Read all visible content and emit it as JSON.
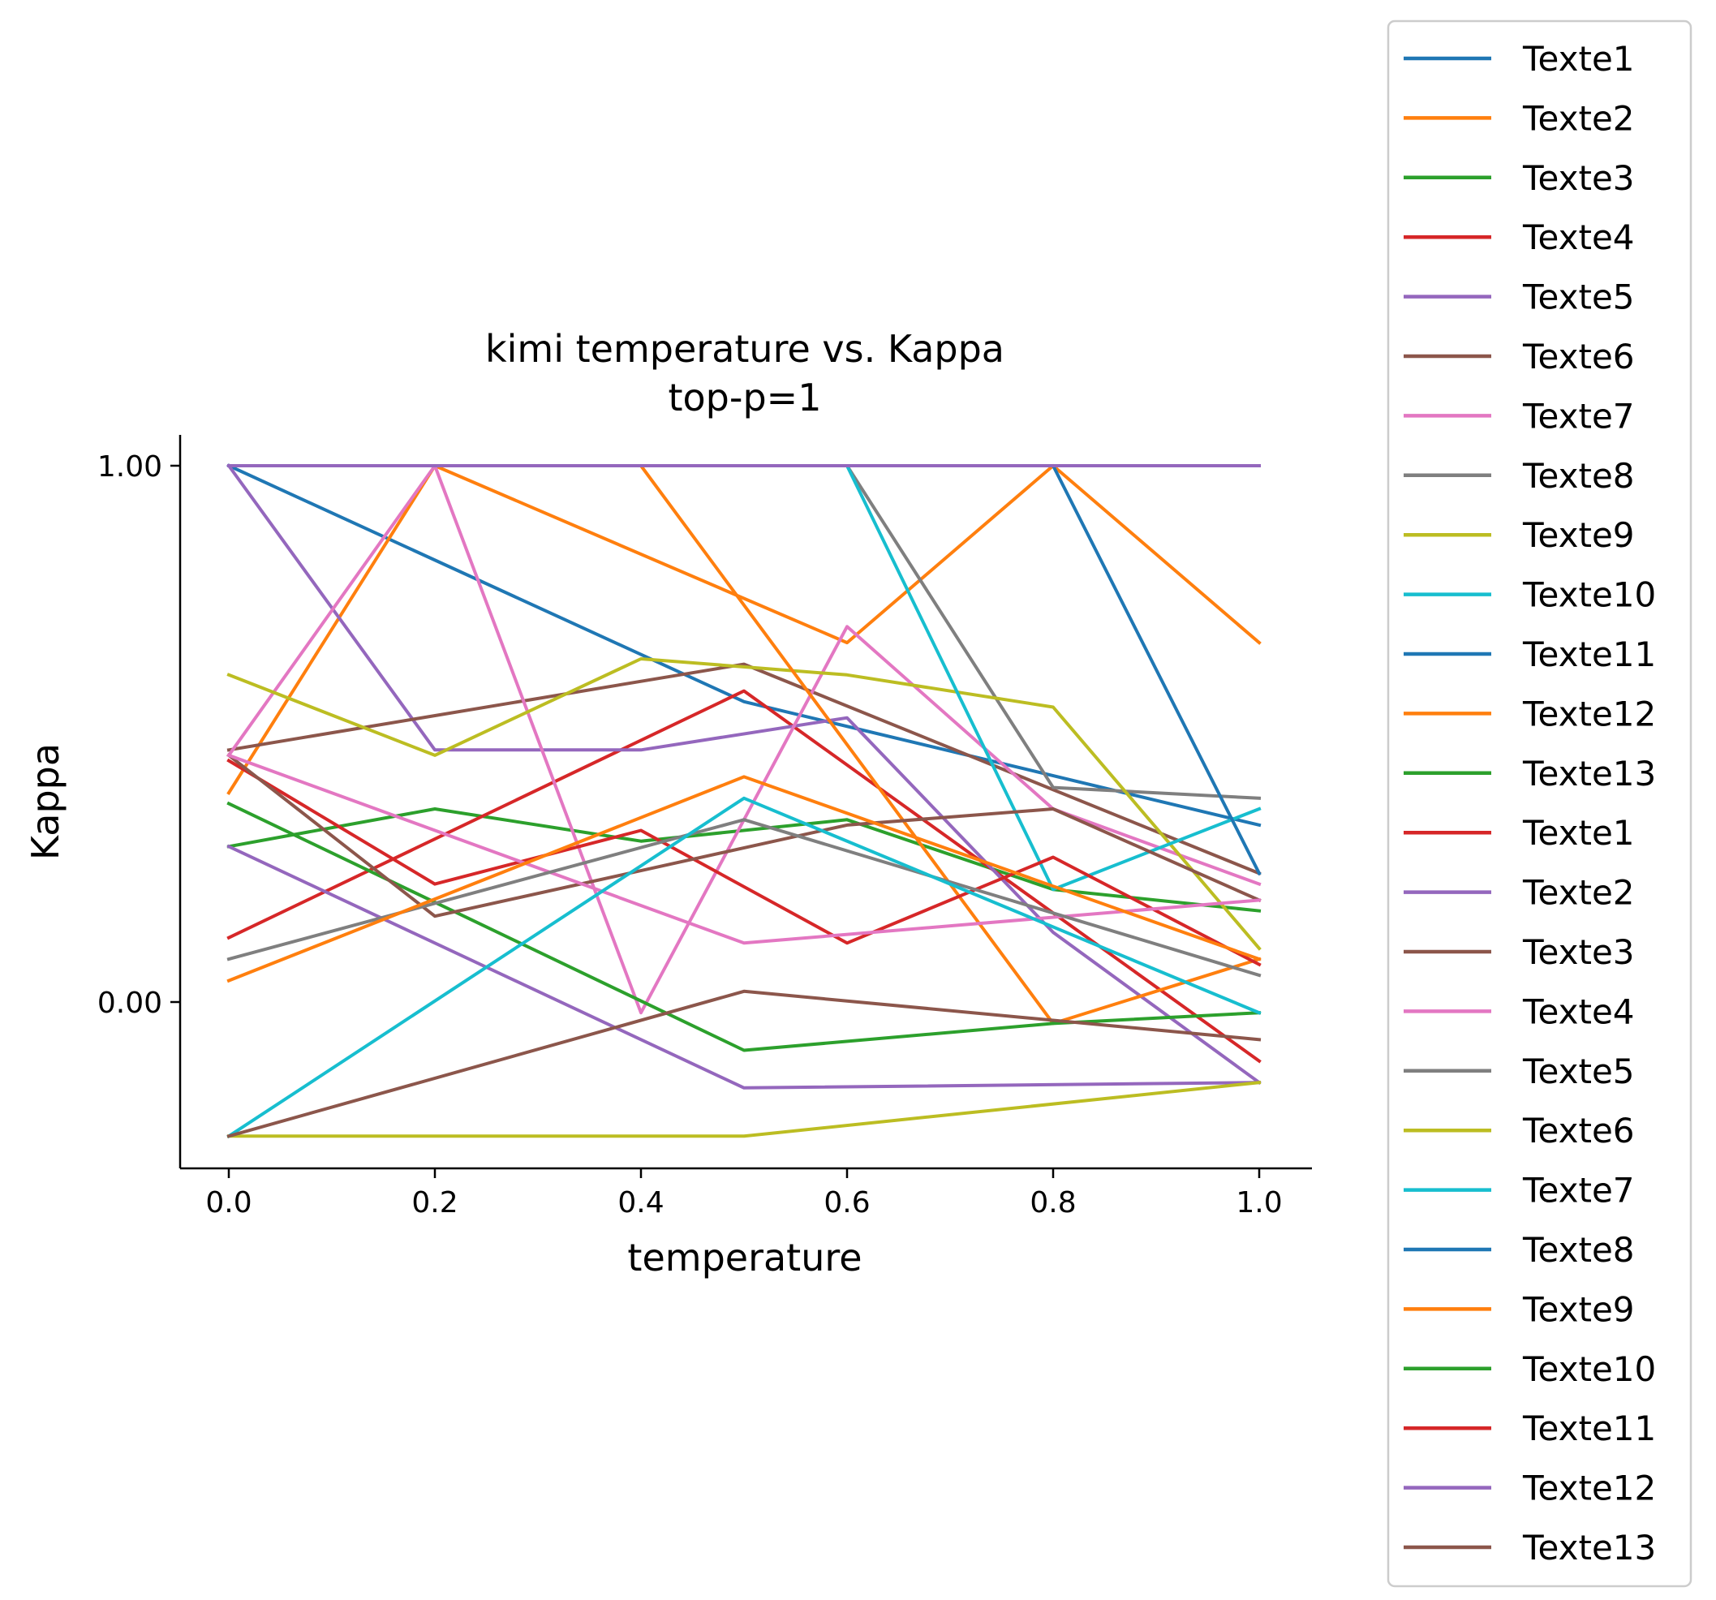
{
  "chart_data": {
    "type": "line",
    "title": "kimi temperature vs. Kappa",
    "subtitle": "top-p=1",
    "xlabel": "temperature",
    "ylabel": "Kappa",
    "xlim": [
      -0.05,
      1.05
    ],
    "ylim": [
      -0.31,
      1.06
    ],
    "x_ticks": [
      0.0,
      0.2,
      0.4,
      0.6,
      0.8,
      1.0
    ],
    "x_tick_labels": [
      "0.0",
      "0.2",
      "0.4",
      "0.6",
      "0.8",
      "1.0"
    ],
    "y_ticks": [
      0.0,
      1.0
    ],
    "y_tick_labels": [
      "0.00",
      "1.00"
    ],
    "grid": false,
    "legend_position": "outside-right",
    "series": [
      {
        "name": "Texte1",
        "color": "#1f77b4",
        "x": [
          0.0,
          0.5,
          1.0
        ],
        "y": [
          1.0,
          0.56,
          0.33
        ]
      },
      {
        "name": "Texte2",
        "color": "#ff7f0e",
        "x": [
          0.0,
          0.2,
          0.6,
          0.8,
          1.0
        ],
        "y": [
          0.39,
          1.0,
          0.67,
          1.0,
          0.67
        ]
      },
      {
        "name": "Texte3",
        "color": "#2ca02c",
        "x": [
          0.0,
          0.2,
          0.4,
          0.6,
          0.8,
          1.0
        ],
        "y": [
          0.29,
          0.36,
          0.3,
          0.34,
          0.21,
          0.17
        ]
      },
      {
        "name": "Texte4",
        "color": "#d62728",
        "x": [
          0.0,
          0.5,
          1.0
        ],
        "y": [
          0.12,
          0.58,
          -0.11
        ]
      },
      {
        "name": "Texte5",
        "color": "#9467bd",
        "x": [
          0.0,
          0.2,
          0.4,
          0.6,
          0.8,
          1.0
        ],
        "y": [
          1.0,
          0.47,
          0.47,
          0.53,
          0.13,
          -0.15
        ]
      },
      {
        "name": "Texte6",
        "color": "#8c564b",
        "x": [
          0.0,
          0.5,
          1.0
        ],
        "y": [
          0.47,
          0.63,
          0.24
        ]
      },
      {
        "name": "Texte7",
        "color": "#e377c2",
        "x": [
          0.0,
          0.2,
          0.4,
          0.6,
          0.8,
          1.0
        ],
        "y": [
          0.46,
          1.0,
          -0.02,
          0.7,
          0.36,
          0.22
        ]
      },
      {
        "name": "Texte8",
        "color": "#7f7f7f",
        "x": [
          0.0,
          0.6,
          0.8,
          1.0
        ],
        "y": [
          1.0,
          1.0,
          0.4,
          0.38
        ]
      },
      {
        "name": "Texte9",
        "color": "#bcbd22",
        "x": [
          0.0,
          0.2,
          0.4,
          0.6,
          0.8,
          1.0
        ],
        "y": [
          0.61,
          0.46,
          0.64,
          0.61,
          0.55,
          0.1
        ]
      },
      {
        "name": "Texte10",
        "color": "#17becf",
        "x": [
          0.0,
          0.6,
          0.8,
          1.0
        ],
        "y": [
          1.0,
          1.0,
          0.21,
          0.36
        ]
      },
      {
        "name": "Texte11",
        "color": "#1f77b4",
        "x": [
          0.0,
          0.8,
          1.0
        ],
        "y": [
          1.0,
          1.0,
          0.24
        ]
      },
      {
        "name": "Texte12",
        "color": "#ff7f0e",
        "x": [
          0.0,
          0.4,
          0.8,
          1.0
        ],
        "y": [
          1.0,
          1.0,
          -0.04,
          0.08
        ]
      },
      {
        "name": "Texte13",
        "color": "#2ca02c",
        "x": [
          0.0,
          0.5,
          0.8,
          1.0
        ],
        "y": [
          0.37,
          -0.09,
          -0.04,
          -0.02
        ]
      },
      {
        "name": "Texte1",
        "color": "#d62728",
        "x": [
          0.0,
          0.2,
          0.4,
          0.6,
          0.8,
          1.0
        ],
        "y": [
          0.45,
          0.22,
          0.32,
          0.11,
          0.27,
          0.07
        ]
      },
      {
        "name": "Texte2",
        "color": "#9467bd",
        "x": [
          0.0,
          0.5,
          1.0
        ],
        "y": [
          0.29,
          -0.16,
          -0.15
        ]
      },
      {
        "name": "Texte3",
        "color": "#8c564b",
        "x": [
          0.0,
          0.2,
          0.6,
          0.8,
          1.0
        ],
        "y": [
          0.46,
          0.16,
          0.33,
          0.36,
          0.19
        ]
      },
      {
        "name": "Texte4",
        "color": "#e377c2",
        "x": [
          0.0,
          0.5,
          1.0
        ],
        "y": [
          0.46,
          0.11,
          0.19
        ]
      },
      {
        "name": "Texte5",
        "color": "#7f7f7f",
        "x": [
          0.0,
          0.5,
          1.0
        ],
        "y": [
          0.08,
          0.34,
          0.05
        ]
      },
      {
        "name": "Texte6",
        "color": "#bcbd22",
        "x": [
          0.0,
          0.5,
          1.0
        ],
        "y": [
          -0.25,
          -0.25,
          -0.15
        ]
      },
      {
        "name": "Texte7",
        "color": "#17becf",
        "x": [
          0.0,
          0.5,
          1.0
        ],
        "y": [
          -0.25,
          0.38,
          -0.02
        ]
      },
      {
        "name": "Texte8",
        "color": "#1f77b4",
        "x": [
          0.0,
          1.0
        ],
        "y": [
          1.0,
          1.0
        ]
      },
      {
        "name": "Texte9",
        "color": "#ff7f0e",
        "x": [
          0.0,
          0.5,
          1.0
        ],
        "y": [
          0.04,
          0.42,
          0.08
        ]
      },
      {
        "name": "Texte10",
        "color": "#2ca02c",
        "x": [
          0.0,
          0.5,
          1.0
        ],
        "y": [
          1.0,
          1.0,
          1.0
        ]
      },
      {
        "name": "Texte11",
        "color": "#d62728",
        "x": [
          0.0,
          1.0
        ],
        "y": [
          1.0,
          1.0
        ]
      },
      {
        "name": "Texte12",
        "color": "#9467bd",
        "x": [
          0.0,
          1.0
        ],
        "y": [
          1.0,
          1.0
        ]
      },
      {
        "name": "Texte13",
        "color": "#8c564b",
        "x": [
          0.0,
          0.5,
          1.0
        ],
        "y": [
          -0.25,
          0.02,
          -0.07
        ]
      }
    ]
  }
}
